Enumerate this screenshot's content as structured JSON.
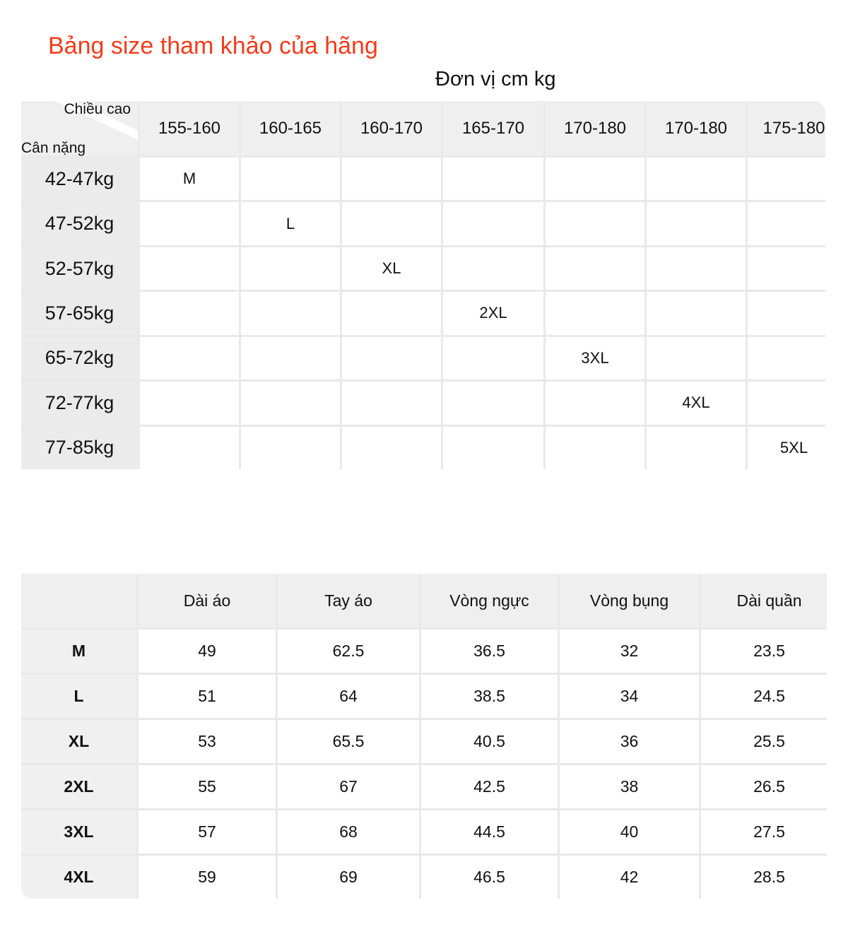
{
  "title": "Bảng size tham khảo của hãng",
  "unit": "Đơn vị cm kg",
  "table1": {
    "corner_top": "Chiều cao",
    "corner_bottom": "Cân nặng",
    "heights": [
      "155-160",
      "160-165",
      "160-170",
      "165-170",
      "170-180",
      "170-180",
      "175-180"
    ],
    "rows": [
      {
        "weight": "42-47kg",
        "size": "M",
        "col": 0
      },
      {
        "weight": "47-52kg",
        "size": "L",
        "col": 1
      },
      {
        "weight": "52-57kg",
        "size": "XL",
        "col": 2
      },
      {
        "weight": "57-65kg",
        "size": "2XL",
        "col": 3
      },
      {
        "weight": "65-72kg",
        "size": "3XL",
        "col": 4
      },
      {
        "weight": "72-77kg",
        "size": "4XL",
        "col": 5
      },
      {
        "weight": "77-85kg",
        "size": "5XL",
        "col": 6
      }
    ]
  },
  "table2": {
    "headers": [
      "",
      "Dài áo",
      "Tay áo",
      "Vòng ngực",
      "Vòng bụng",
      "Dài quần"
    ],
    "rows": [
      [
        "M",
        "49",
        "62.5",
        "36.5",
        "32",
        "23.5"
      ],
      [
        "L",
        "51",
        "64",
        "38.5",
        "34",
        "24.5"
      ],
      [
        "XL",
        "53",
        "65.5",
        "40.5",
        "36",
        "25.5"
      ],
      [
        "2XL",
        "55",
        "67",
        "42.5",
        "38",
        "26.5"
      ],
      [
        "3XL",
        "57",
        "68",
        "44.5",
        "40",
        "27.5"
      ],
      [
        "4XL",
        "59",
        "69",
        "46.5",
        "42",
        "28.5"
      ]
    ]
  },
  "colors": {
    "title": "#f23c1c",
    "header_bg": "#efefef",
    "grid": "#e9e9e9"
  }
}
